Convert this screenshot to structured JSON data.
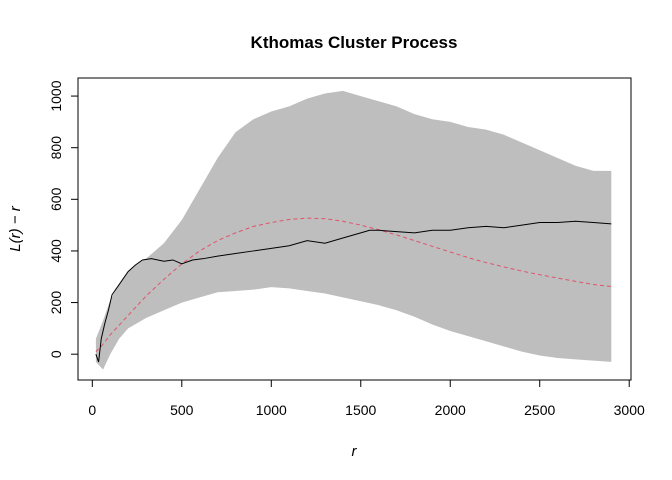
{
  "chart_data": {
    "type": "line",
    "title": "Kthomas Cluster Process",
    "xlabel": "r",
    "ylabel": "L(r) − r",
    "xlim": [
      -80,
      3010
    ],
    "ylim": [
      -100,
      1070
    ],
    "x_ticks": [
      0,
      500,
      1000,
      1500,
      2000,
      2500,
      3000
    ],
    "y_ticks": [
      0,
      200,
      400,
      600,
      800,
      1000
    ],
    "grid": false,
    "legend": "none",
    "colors": {
      "envelope": "#bebebe",
      "observed": "#000000",
      "theoretical": "#df536b"
    },
    "series": [
      {
        "role": "envelope",
        "x": [
          20,
          60,
          100,
          150,
          200,
          250,
          300,
          400,
          500,
          600,
          700,
          800,
          900,
          1000,
          1100,
          1200,
          1300,
          1400,
          1500,
          1600,
          1700,
          1800,
          1900,
          2000,
          2100,
          2200,
          2300,
          2400,
          2500,
          2600,
          2700,
          2800,
          2900
        ],
        "upper": [
          60,
          130,
          210,
          270,
          320,
          350,
          370,
          430,
          520,
          640,
          760,
          860,
          910,
          940,
          960,
          990,
          1010,
          1020,
          1000,
          980,
          960,
          930,
          910,
          900,
          880,
          870,
          850,
          820,
          790,
          760,
          730,
          710,
          710
        ],
        "lower": [
          -30,
          -60,
          0,
          60,
          100,
          120,
          140,
          170,
          200,
          220,
          240,
          245,
          250,
          260,
          255,
          245,
          235,
          220,
          205,
          190,
          170,
          145,
          115,
          90,
          70,
          50,
          30,
          10,
          -5,
          -15,
          -20,
          -25,
          -30
        ]
      },
      {
        "role": "observed",
        "x": [
          20,
          35,
          50,
          70,
          90,
          110,
          130,
          160,
          200,
          240,
          280,
          330,
          400,
          450,
          500,
          560,
          620,
          700,
          800,
          900,
          1000,
          1100,
          1200,
          1300,
          1400,
          1500,
          1550,
          1600,
          1700,
          1800,
          1900,
          2000,
          2100,
          2200,
          2300,
          2400,
          2500,
          2600,
          2700,
          2800,
          2900
        ],
        "y": [
          0,
          -30,
          60,
          120,
          170,
          230,
          250,
          280,
          320,
          345,
          365,
          370,
          360,
          365,
          350,
          365,
          370,
          380,
          390,
          400,
          410,
          420,
          440,
          430,
          450,
          470,
          480,
          480,
          475,
          470,
          480,
          480,
          490,
          495,
          490,
          500,
          510,
          510,
          515,
          510,
          505
        ]
      },
      {
        "role": "theoretical",
        "x": [
          20,
          50,
          100,
          200,
          300,
          400,
          500,
          600,
          700,
          800,
          900,
          1000,
          1100,
          1200,
          1300,
          1400,
          1500,
          1600,
          1700,
          1800,
          1900,
          2000,
          2100,
          2200,
          2300,
          2400,
          2500,
          2600,
          2700,
          2800,
          2900
        ],
        "y": [
          10,
          30,
          75,
          150,
          225,
          290,
          350,
          400,
          440,
          470,
          495,
          510,
          522,
          527,
          525,
          515,
          500,
          482,
          462,
          440,
          418,
          396,
          374,
          355,
          338,
          322,
          308,
          295,
          282,
          270,
          262
        ]
      }
    ]
  }
}
